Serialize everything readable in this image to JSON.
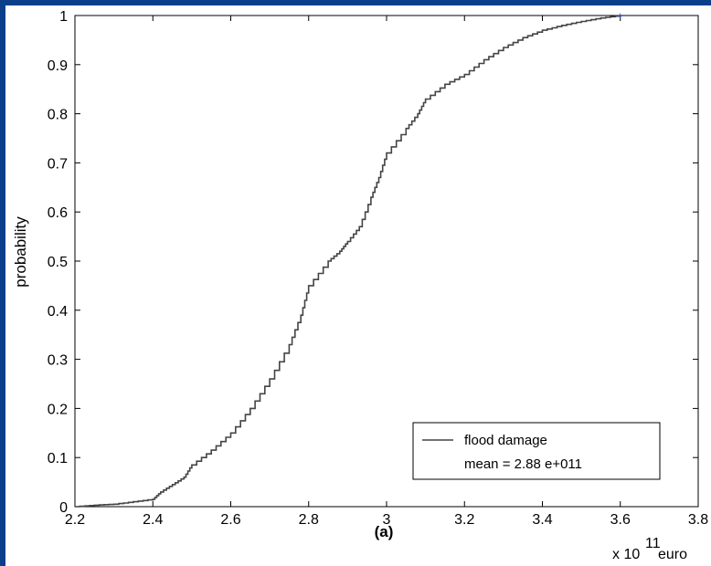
{
  "chart_data": {
    "type": "line",
    "title": "",
    "xlabel": "(a)",
    "ylabel": "probability",
    "x_exponent_prefix": "x 10",
    "x_exponent_power": "11",
    "x_unit": "euro",
    "xlim": [
      2.2,
      3.8
    ],
    "ylim": [
      0,
      1
    ],
    "x_ticks": [
      "2.2",
      "2.4",
      "2.6",
      "2.8",
      "3",
      "3.2",
      "3.4",
      "3.6",
      "3.8"
    ],
    "y_ticks": [
      "0",
      "0.1",
      "0.2",
      "0.3",
      "0.4",
      "0.5",
      "0.6",
      "0.7",
      "0.8",
      "0.9",
      "1"
    ],
    "grid": false,
    "legend_position": "bottom-right",
    "legend_line1": "flood damage",
    "legend_line2": "mean = 2.88 e+011",
    "colors": {
      "line": "#444444",
      "endpoint_marker": "#1f3fd0",
      "frame_border": "#0b3f8a"
    },
    "series": [
      {
        "name": "flood damage",
        "x": [
          2.2,
          2.25,
          2.3,
          2.35,
          2.4,
          2.42,
          2.45,
          2.48,
          2.5,
          2.55,
          2.6,
          2.65,
          2.7,
          2.75,
          2.78,
          2.8,
          2.85,
          2.88,
          2.9,
          2.93,
          2.96,
          2.98,
          3.0,
          3.05,
          3.08,
          3.1,
          3.15,
          3.2,
          3.25,
          3.3,
          3.35,
          3.4,
          3.45,
          3.5,
          3.55,
          3.6
        ],
        "y": [
          0.0,
          0.003,
          0.005,
          0.01,
          0.015,
          0.03,
          0.045,
          0.06,
          0.085,
          0.115,
          0.15,
          0.2,
          0.26,
          0.33,
          0.39,
          0.45,
          0.5,
          0.52,
          0.54,
          0.57,
          0.63,
          0.67,
          0.72,
          0.77,
          0.8,
          0.83,
          0.86,
          0.88,
          0.91,
          0.935,
          0.955,
          0.97,
          0.98,
          0.988,
          0.995,
          1.0
        ]
      }
    ]
  }
}
